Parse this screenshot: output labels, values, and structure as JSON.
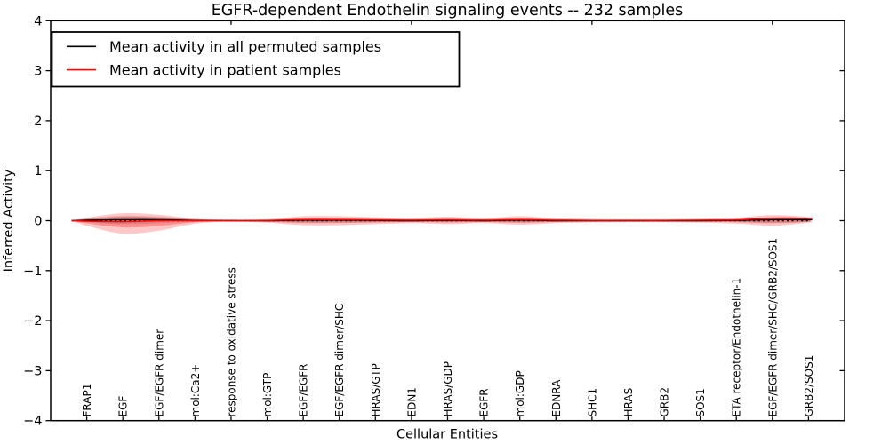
{
  "title": "EGFR-dependent Endothelin signaling events -- 232 samples",
  "legend": {
    "items": [
      {
        "label": "Mean activity in all permuted samples",
        "color": "#000000"
      },
      {
        "label": "Mean activity in patient samples",
        "color": "#ff0000"
      }
    ]
  },
  "axes": {
    "ylabel": "Inferred Activity",
    "xlabel": "Cellular Entities",
    "ytick_labels": [
      "4",
      "3",
      "2",
      "1",
      "0",
      "−1",
      "−2",
      "−3",
      "−4"
    ],
    "ytick_values": [
      4,
      3,
      2,
      1,
      0,
      -1,
      -2,
      -3,
      -4
    ],
    "ylim": [
      -4,
      4
    ]
  },
  "chart_data": {
    "type": "area",
    "title": "EGFR-dependent Endothelin signaling events -- 232 samples",
    "xlabel": "Cellular Entities",
    "ylabel": "Inferred Activity",
    "ylim": [
      -4,
      4
    ],
    "grid": false,
    "legend_position": "upper left",
    "zero_line": 0,
    "top_tick_positions": [
      5,
      10,
      15,
      20
    ],
    "categories": [
      "FRAP1",
      "EGF",
      "EGF/EGFR dimer",
      "mol:Ca2+",
      "response to oxidative stress",
      "mol:GTP",
      "EGF/EGFR",
      "EGF/EGFR dimer/SHC",
      "HRAS/GTP",
      "EDN1",
      "HRAS/GDP",
      "EGFR",
      "mol:GDP",
      "EDNRA",
      "SHC1",
      "HRAS",
      "GRB2",
      "SOS1",
      "ETA receptor/Endothelin-1",
      "EGF/EGFR dimer/SHC/GRB2/SOS1",
      "GRB2/SOS1"
    ],
    "series": [
      {
        "name": "Mean activity in all permuted samples",
        "color": "#000000",
        "values": [
          0.01,
          0.02,
          0.02,
          0.005,
          0.0,
          0.0,
          0.01,
          0.01,
          0.005,
          0.0,
          0.005,
          0.0,
          0.01,
          0.0,
          0.0,
          0.0,
          0.0,
          0.0,
          0.005,
          0.02,
          0.02
        ]
      },
      {
        "name": "Mean activity in patient samples",
        "color": "#ff0000",
        "values": [
          -0.01,
          -0.02,
          0.0,
          0.0,
          0.0,
          0.005,
          0.02,
          0.02,
          0.015,
          0.01,
          0.015,
          0.01,
          0.02,
          0.01,
          0.005,
          0.005,
          0.005,
          0.01,
          0.015,
          0.05,
          0.05
        ]
      }
    ],
    "bands": [
      {
        "name": "patient-activity-distribution",
        "color": "#ff0000",
        "upper": [
          0.06,
          0.15,
          0.12,
          0.04,
          0.02,
          0.03,
          0.09,
          0.09,
          0.07,
          0.05,
          0.08,
          0.05,
          0.09,
          0.05,
          0.035,
          0.03,
          0.03,
          0.04,
          0.06,
          0.11,
          0.07
        ],
        "lower": [
          -0.1,
          -0.26,
          -0.2,
          -0.06,
          -0.02,
          -0.04,
          -0.09,
          -0.09,
          -0.07,
          -0.05,
          -0.07,
          -0.05,
          -0.08,
          -0.05,
          -0.035,
          -0.03,
          -0.03,
          -0.04,
          -0.06,
          -0.1,
          -0.04
        ]
      },
      {
        "name": "permuted-activity-distribution",
        "color": "#000000",
        "upper": [
          0.04,
          0.1,
          0.08,
          0.03,
          0.015,
          0.02,
          0.05,
          0.05,
          0.04,
          0.03,
          0.04,
          0.03,
          0.05,
          0.03,
          0.02,
          0.02,
          0.02,
          0.02,
          0.03,
          0.07,
          0.05
        ],
        "lower": [
          -0.03,
          -0.07,
          -0.05,
          -0.02,
          -0.01,
          -0.015,
          -0.035,
          -0.035,
          -0.03,
          -0.02,
          -0.03,
          -0.02,
          -0.035,
          -0.02,
          -0.015,
          -0.015,
          -0.015,
          -0.015,
          -0.02,
          -0.04,
          -0.02
        ]
      }
    ]
  }
}
